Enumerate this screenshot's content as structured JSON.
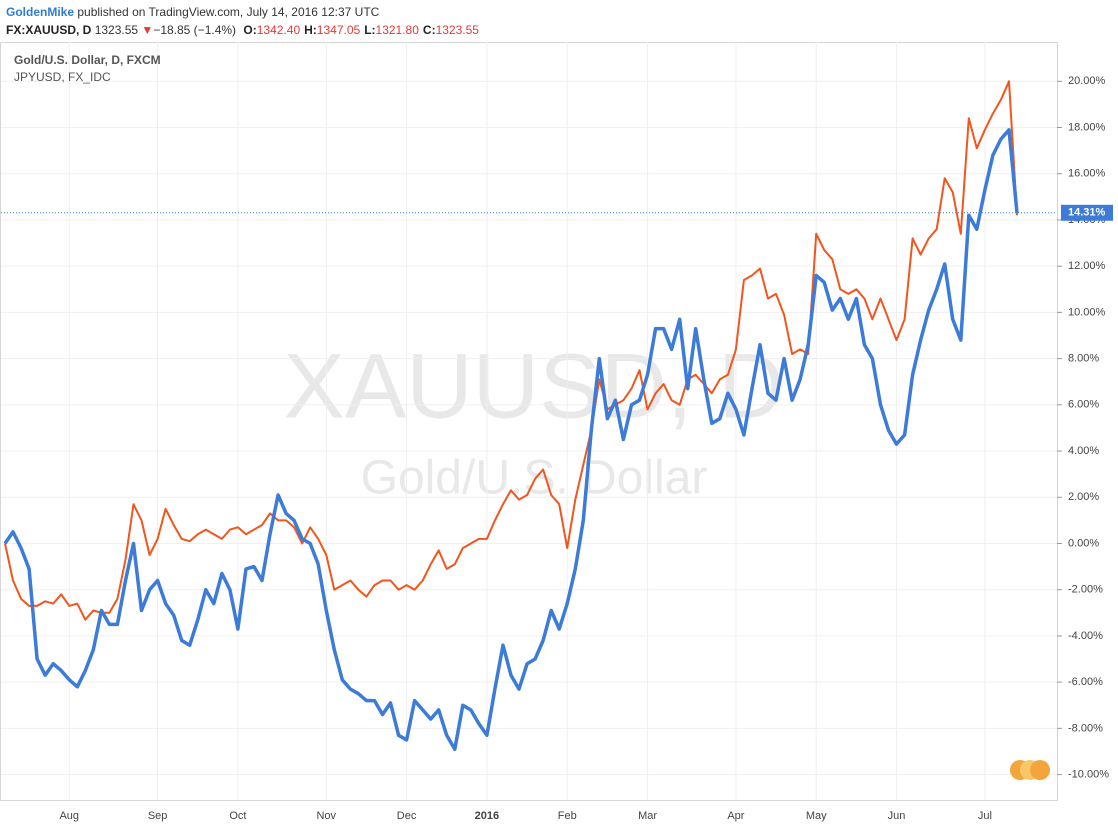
{
  "header": {
    "author": "GoldenMike",
    "published": "published on TradingView.com, July 14, 2016 12:37 UTC",
    "symbol": "FX:XAUUSD, D",
    "price": "1323.55",
    "arrow": "▼",
    "change": "−18.85 (−1.4%)",
    "ohlc": [
      {
        "key": "O:",
        "value": "1342.40"
      },
      {
        "key": "H:",
        "value": "1347.05"
      },
      {
        "key": "L:",
        "value": "1321.80"
      },
      {
        "key": "C:",
        "value": "1323.55"
      }
    ]
  },
  "chart_data": {
    "type": "line",
    "watermark": [
      "XAUUSD, D",
      "Gold/U.S. Dollar"
    ],
    "last_value_label": "14.31%",
    "grid": true,
    "categories": [
      null,
      null,
      null,
      null,
      null,
      null,
      null,
      null,
      "Aug",
      null,
      null,
      null,
      null,
      null,
      null,
      null,
      null,
      null,
      null,
      "Sep",
      null,
      null,
      null,
      null,
      null,
      null,
      null,
      null,
      null,
      "Oct",
      null,
      null,
      null,
      null,
      null,
      null,
      null,
      null,
      null,
      null,
      "Nov",
      null,
      null,
      null,
      null,
      null,
      null,
      null,
      null,
      null,
      "Dec",
      null,
      null,
      null,
      null,
      null,
      null,
      null,
      null,
      null,
      "2016",
      null,
      null,
      null,
      null,
      null,
      null,
      null,
      null,
      null,
      "Feb",
      null,
      null,
      null,
      null,
      null,
      null,
      null,
      null,
      null,
      "Mar",
      null,
      null,
      null,
      null,
      null,
      null,
      null,
      null,
      null,
      null,
      "Apr",
      null,
      null,
      null,
      null,
      null,
      null,
      null,
      null,
      null,
      "May",
      null,
      null,
      null,
      null,
      null,
      null,
      null,
      null,
      null,
      "Jun",
      null,
      null,
      null,
      null,
      null,
      null,
      null,
      null,
      null,
      null,
      "Jul",
      null,
      null,
      null,
      null
    ],
    "series": [
      {
        "name": "Gold/U.S. Dollar, D, FXCM",
        "color": "#3d7bd9",
        "values": [
          0,
          0.5,
          -0.2,
          -1.1,
          -5.0,
          -5.7,
          -5.2,
          -5.5,
          -5.9,
          -6.2,
          -5.5,
          -4.6,
          -2.9,
          -3.5,
          -3.5,
          -1.6,
          0,
          -2.9,
          -2.0,
          -1.6,
          -2.6,
          -3.1,
          -4.2,
          -4.4,
          -3.3,
          -2.0,
          -2.6,
          -1.3,
          -2.0,
          -3.7,
          -1.1,
          -1.0,
          -1.6,
          0.4,
          2.1,
          1.3,
          1.0,
          0.2,
          0,
          -0.9,
          -2.9,
          -4.6,
          -5.9,
          -6.3,
          -6.5,
          -6.8,
          -6.8,
          -7.4,
          -6.9,
          -8.3,
          -8.5,
          -6.8,
          -7.2,
          -7.6,
          -7.2,
          -8.3,
          -8.9,
          -7.0,
          -7.2,
          -7.8,
          -8.3,
          -6.3,
          -4.4,
          -5.7,
          -6.3,
          -5.2,
          -5.0,
          -4.2,
          -2.9,
          -3.7,
          -2.6,
          -1.1,
          1.0,
          4.9,
          8.0,
          5.4,
          6.2,
          4.5,
          6.0,
          6.2,
          7.3,
          9.3,
          9.3,
          8.4,
          9.7,
          6.7,
          9.3,
          7.1,
          5.2,
          5.4,
          6.5,
          5.8,
          4.7,
          6.7,
          8.6,
          6.5,
          6.2,
          8.0,
          6.2,
          7.1,
          8.6,
          11.6,
          11.3,
          10.1,
          10.6,
          9.7,
          10.6,
          8.6,
          8.0,
          6.0,
          4.9,
          4.3,
          4.7,
          7.3,
          8.8,
          10.1,
          11.0,
          12.1,
          9.7,
          8.8,
          14.2,
          13.6,
          15.3,
          16.8,
          17.5,
          17.9,
          14.31
        ]
      },
      {
        "name": "JPYUSD, FX_IDC",
        "color": "#f0561d",
        "values": [
          0,
          -1.6,
          -2.4,
          -2.7,
          -2.7,
          -2.5,
          -2.6,
          -2.2,
          -2.7,
          -2.6,
          -3.3,
          -2.9,
          -3.0,
          -3.0,
          -2.4,
          -0.7,
          1.7,
          1.0,
          -0.5,
          0.2,
          1.5,
          0.8,
          0.2,
          0.1,
          0.4,
          0.6,
          0.4,
          0.2,
          0.6,
          0.7,
          0.4,
          0.6,
          0.8,
          1.3,
          1.0,
          1.0,
          0.7,
          0,
          0.7,
          0.2,
          -0.5,
          -2.0,
          -1.8,
          -1.6,
          -2.0,
          -2.3,
          -1.8,
          -1.6,
          -1.6,
          -2.0,
          -1.8,
          -2.0,
          -1.6,
          -0.9,
          -0.3,
          -1.1,
          -0.9,
          -0.2,
          0,
          0.2,
          0.2,
          1.0,
          1.7,
          2.3,
          1.9,
          2.1,
          2.8,
          3.2,
          2.1,
          1.7,
          -0.2,
          1.9,
          3.4,
          4.9,
          7.1,
          5.8,
          6.0,
          6.2,
          6.7,
          7.5,
          5.8,
          6.5,
          6.9,
          6.2,
          6.0,
          7.1,
          7.3,
          6.9,
          6.5,
          7.1,
          7.3,
          8.4,
          11.4,
          11.6,
          11.9,
          10.6,
          10.8,
          9.9,
          8.2,
          8.4,
          8.2,
          13.4,
          12.7,
          12.3,
          11.0,
          10.8,
          11.0,
          10.6,
          9.7,
          10.6,
          9.7,
          8.8,
          9.7,
          13.2,
          12.5,
          13.2,
          13.6,
          15.8,
          15.2,
          13.4,
          18.4,
          17.1,
          17.9,
          18.6,
          19.2,
          20.0,
          14.2
        ]
      }
    ],
    "ylim": [
      -11.1,
      21.7
    ],
    "yticks": [
      {
        "value": -10,
        "label": "-10.00%"
      },
      {
        "value": -8,
        "label": "-8.00%"
      },
      {
        "value": -6,
        "label": "-6.00%"
      },
      {
        "value": -4,
        "label": "-4.00%"
      },
      {
        "value": -2,
        "label": "-2.00%"
      },
      {
        "value": 0,
        "label": "0.00%"
      },
      {
        "value": 2,
        "label": "2.00%"
      },
      {
        "value": 4,
        "label": "4.00%"
      },
      {
        "value": 6,
        "label": "6.00%"
      },
      {
        "value": 8,
        "label": "8.00%"
      },
      {
        "value": 10,
        "label": "10.00%"
      },
      {
        "value": 12,
        "label": "12.00%"
      },
      {
        "value": 14,
        "label": "14.00%"
      },
      {
        "value": 16,
        "label": "16.00%"
      },
      {
        "value": 18,
        "label": "18.00%"
      },
      {
        "value": 20,
        "label": "20.00%"
      }
    ]
  }
}
